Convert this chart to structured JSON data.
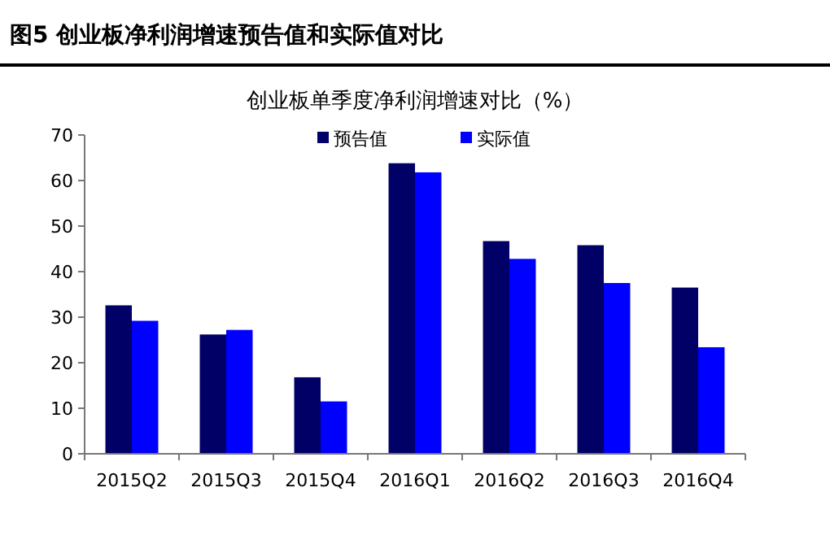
{
  "chart_data": {
    "type": "bar",
    "title": "图5  创业板净利润增速预告值和实际值对比",
    "subtitle": "创业板单季度净利润增速对比（%）",
    "categories": [
      "2015Q2",
      "2015Q3",
      "2015Q4",
      "2016Q1",
      "2016Q2",
      "2016Q3",
      "2016Q4"
    ],
    "series": [
      {
        "name": "预告值",
        "color": "#000066",
        "values": [
          32.6,
          26.2,
          16.8,
          63.8,
          46.7,
          45.8,
          36.5
        ]
      },
      {
        "name": "实际值",
        "color": "#0000ff",
        "values": [
          29.2,
          27.2,
          11.5,
          61.8,
          42.8,
          37.5,
          23.4
        ]
      }
    ],
    "ylim": [
      0,
      70
    ],
    "yticks": [
      0,
      10,
      20,
      30,
      40,
      50,
      60,
      70
    ],
    "grid": false,
    "legend": "top"
  }
}
